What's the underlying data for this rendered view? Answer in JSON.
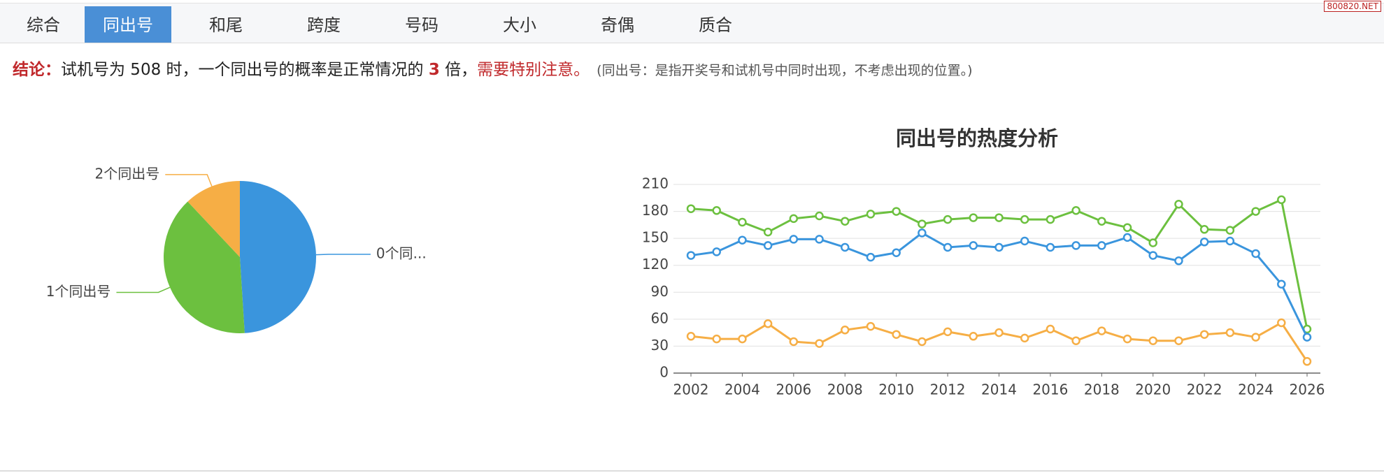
{
  "watermark": "800820.NET",
  "tabs": [
    {
      "label": "综合",
      "active": false
    },
    {
      "label": "同出号",
      "active": true
    },
    {
      "label": "和尾",
      "active": false
    },
    {
      "label": "跨度",
      "active": false
    },
    {
      "label": "号码",
      "active": false
    },
    {
      "label": "大小",
      "active": false
    },
    {
      "label": "奇偶",
      "active": false
    },
    {
      "label": "质合",
      "active": false
    }
  ],
  "conclusion": {
    "label": "结论：",
    "text": "试机号为 508 时，一个同出号的概率是正常情况的",
    "multiple": "3",
    "unit": "倍，",
    "warning": "需要特别注意。",
    "note": "(同出号：是指开奖号和试机号中同时出现，不考虑出现的位置。)"
  },
  "chart_data": [
    {
      "type": "pie",
      "categories": [
        "0个同...",
        "1个同出号",
        "2个同出号"
      ],
      "values": [
        49,
        39,
        12
      ],
      "colors": [
        "#3a95dd",
        "#6cc03f",
        "#f6ae45"
      ]
    },
    {
      "type": "line",
      "title": "同出号的热度分析",
      "x": [
        2002,
        2003,
        2004,
        2005,
        2006,
        2007,
        2008,
        2009,
        2010,
        2011,
        2012,
        2013,
        2014,
        2015,
        2016,
        2017,
        2018,
        2019,
        2020,
        2021,
        2022,
        2023,
        2024,
        2025,
        2026
      ],
      "series": [
        {
          "color": "#6cc03f",
          "values": [
            183,
            181,
            168,
            157,
            172,
            175,
            169,
            177,
            180,
            166,
            171,
            173,
            173,
            171,
            171,
            181,
            169,
            162,
            145,
            188,
            160,
            159,
            180,
            193,
            49
          ]
        },
        {
          "color": "#3a95dd",
          "values": [
            131,
            135,
            148,
            142,
            149,
            149,
            140,
            129,
            134,
            156,
            140,
            142,
            140,
            147,
            140,
            142,
            142,
            151,
            131,
            125,
            146,
            147,
            133,
            99,
            40
          ]
        },
        {
          "color": "#f6ae45",
          "values": [
            41,
            38,
            38,
            55,
            35,
            33,
            48,
            52,
            43,
            35,
            46,
            41,
            45,
            39,
            49,
            36,
            47,
            38,
            36,
            36,
            43,
            45,
            40,
            56,
            13
          ]
        }
      ],
      "xlim": [
        2002,
        2026
      ],
      "xticks": [
        2002,
        2004,
        2006,
        2008,
        2010,
        2012,
        2014,
        2016,
        2018,
        2020,
        2022,
        2024,
        2026
      ],
      "ylim": [
        0,
        210
      ],
      "yticks": [
        0,
        30,
        60,
        90,
        120,
        150,
        180,
        210
      ],
      "grid": true
    }
  ]
}
